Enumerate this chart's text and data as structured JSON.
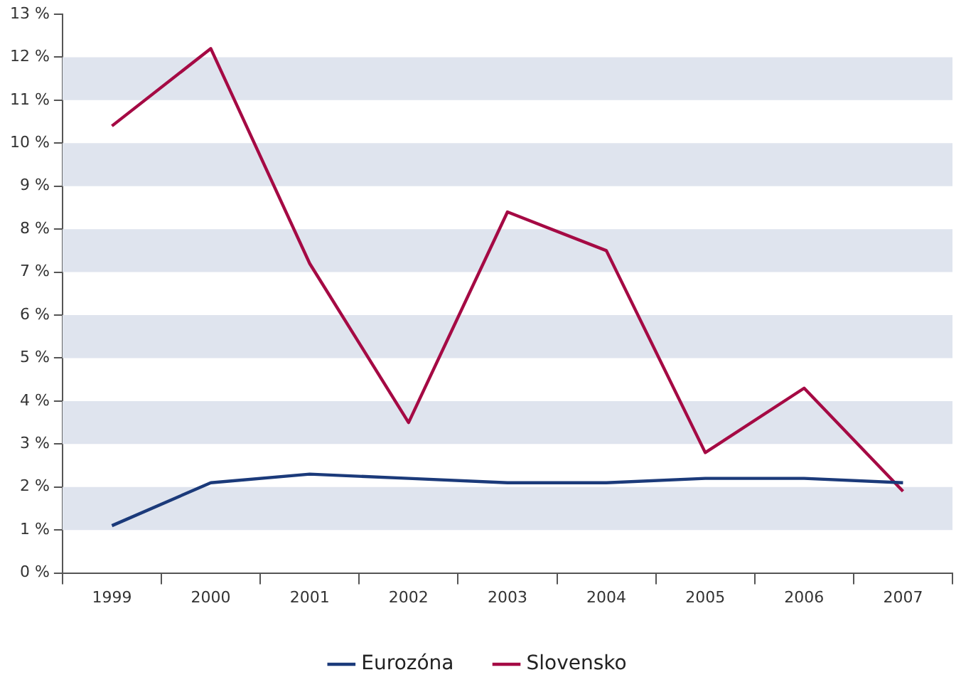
{
  "chart_data": {
    "type": "line",
    "categories": [
      "1999",
      "2000",
      "2001",
      "2002",
      "2003",
      "2004",
      "2005",
      "2006",
      "2007"
    ],
    "series": [
      {
        "name": "Eurozóna",
        "color": "#1b3a7a",
        "values": [
          1.1,
          2.1,
          2.3,
          2.2,
          2.1,
          2.1,
          2.2,
          2.2,
          2.1
        ]
      },
      {
        "name": "Slovensko",
        "color": "#a50a44",
        "values": [
          10.4,
          12.2,
          7.2,
          3.5,
          8.4,
          7.5,
          2.8,
          4.3,
          1.9
        ]
      }
    ],
    "ylim": [
      0,
      13
    ],
    "yticks": [
      {
        "value": 0,
        "label": "0 %"
      },
      {
        "value": 1,
        "label": "1 %"
      },
      {
        "value": 2,
        "label": "2 %"
      },
      {
        "value": 3,
        "label": "3 %"
      },
      {
        "value": 4,
        "label": "4 %"
      },
      {
        "value": 5,
        "label": "5 %"
      },
      {
        "value": 6,
        "label": "6 %"
      },
      {
        "value": 7,
        "label": "7 %"
      },
      {
        "value": 8,
        "label": "8 %"
      },
      {
        "value": 9,
        "label": "9 %"
      },
      {
        "value": 10,
        "label": "10 %"
      },
      {
        "value": 11,
        "label": "11 %"
      },
      {
        "value": 12,
        "label": "12 %"
      },
      {
        "value": 13,
        "label": "13 %"
      }
    ],
    "bands": [
      {
        "axis": "y",
        "from": 1,
        "to": 2,
        "color": "#dfe4ee"
      },
      {
        "axis": "y",
        "from": 3,
        "to": 4,
        "color": "#dfe4ee"
      },
      {
        "axis": "y",
        "from": 5,
        "to": 6,
        "color": "#dfe4ee"
      },
      {
        "axis": "y",
        "from": 7,
        "to": 8,
        "color": "#dfe4ee"
      },
      {
        "axis": "y",
        "from": 9,
        "to": 10,
        "color": "#dfe4ee"
      },
      {
        "axis": "y",
        "from": 11,
        "to": 12,
        "color": "#dfe4ee"
      }
    ],
    "grid": false,
    "legend": "bottom",
    "marker": "none",
    "line_style": "solid"
  }
}
